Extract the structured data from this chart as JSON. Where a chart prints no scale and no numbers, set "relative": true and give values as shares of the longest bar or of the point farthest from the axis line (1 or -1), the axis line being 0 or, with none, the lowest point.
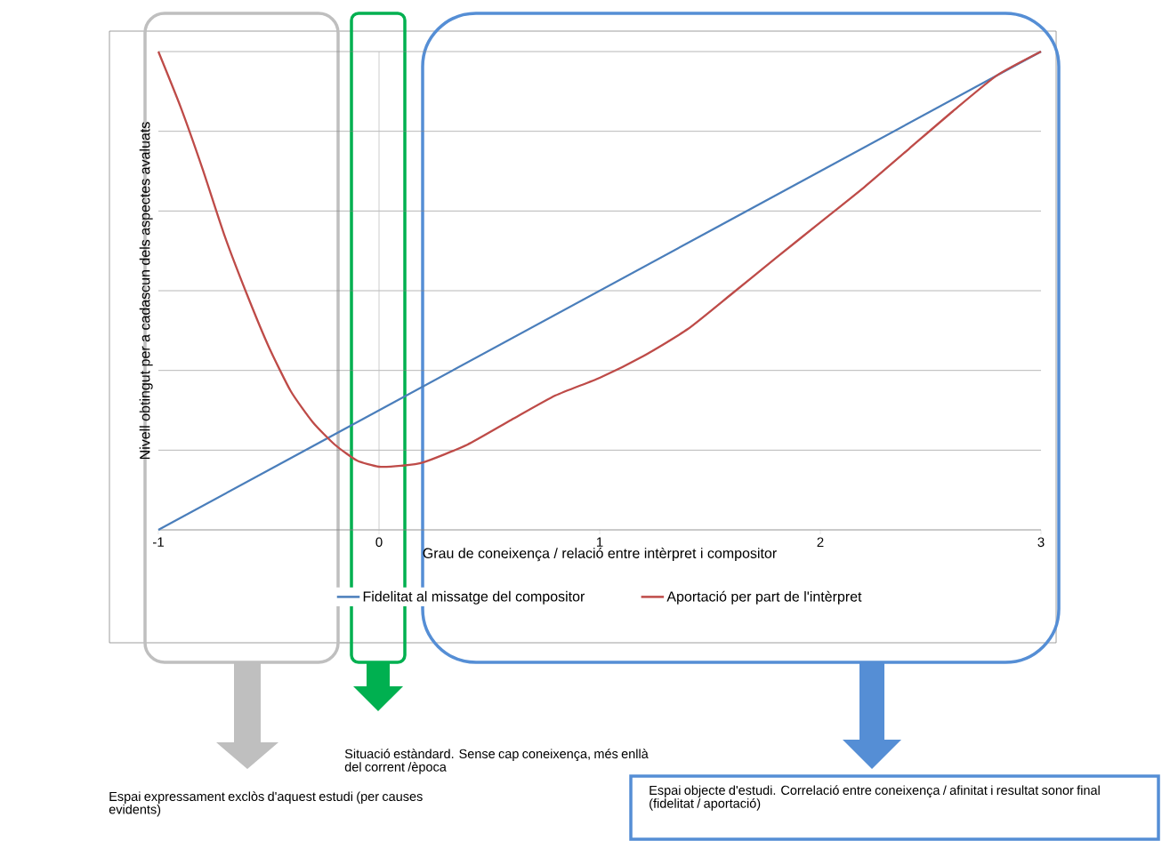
{
  "chart_data": {
    "type": "line",
    "relative": true,
    "xlabel": "Grau de coneixença / relació entre intèrpret i compositor",
    "ylabel": "Nivell obtingut per a cadascun dels aspectes avaluats",
    "xlim": [
      -1,
      3
    ],
    "xticks": [
      -1,
      0,
      1,
      2,
      3
    ],
    "grid": "y",
    "legend": "bottom",
    "marker": "none",
    "line_style": "solid",
    "ref_lines": [
      {
        "axis": "x",
        "value": 0,
        "color": "#bfbfbf"
      }
    ],
    "series": [
      {
        "name": "Fidelitat al missatge  del compositor",
        "color": "#4a7ebb",
        "x": [
          -1,
          3
        ],
        "values": [
          0,
          1
        ]
      },
      {
        "name": "Aportació per part de l'intèrpret",
        "color": "#be4b48",
        "x": [
          -1,
          -0.9,
          -0.8,
          -0.7,
          -0.6,
          -0.5,
          -0.4,
          -0.3,
          -0.2,
          -0.1,
          0,
          0.1,
          0.2,
          0.4,
          0.6,
          0.8,
          1.0,
          1.2,
          1.4,
          1.6,
          1.8,
          2.0,
          2.2,
          2.4,
          2.6,
          2.8,
          3
        ],
        "values": [
          1,
          0.885,
          0.755,
          0.615,
          0.494,
          0.383,
          0.29,
          0.225,
          0.178,
          0.145,
          0.132,
          0.134,
          0.141,
          0.178,
          0.23,
          0.281,
          0.318,
          0.364,
          0.42,
          0.494,
          0.569,
          0.643,
          0.717,
          0.796,
          0.875,
          0.95,
          1
        ]
      }
    ],
    "annotations": [
      "Situació estàndard. Sense cap coneixença, més enllà del corrent /època",
      "Espai expressament exclòs d'aquest estudi (per causes evidents)",
      "Espai objecte d'estudi. Correlació entre coneixença / afinitat i resultat sonor final (fidelitat / aportació)"
    ]
  }
}
